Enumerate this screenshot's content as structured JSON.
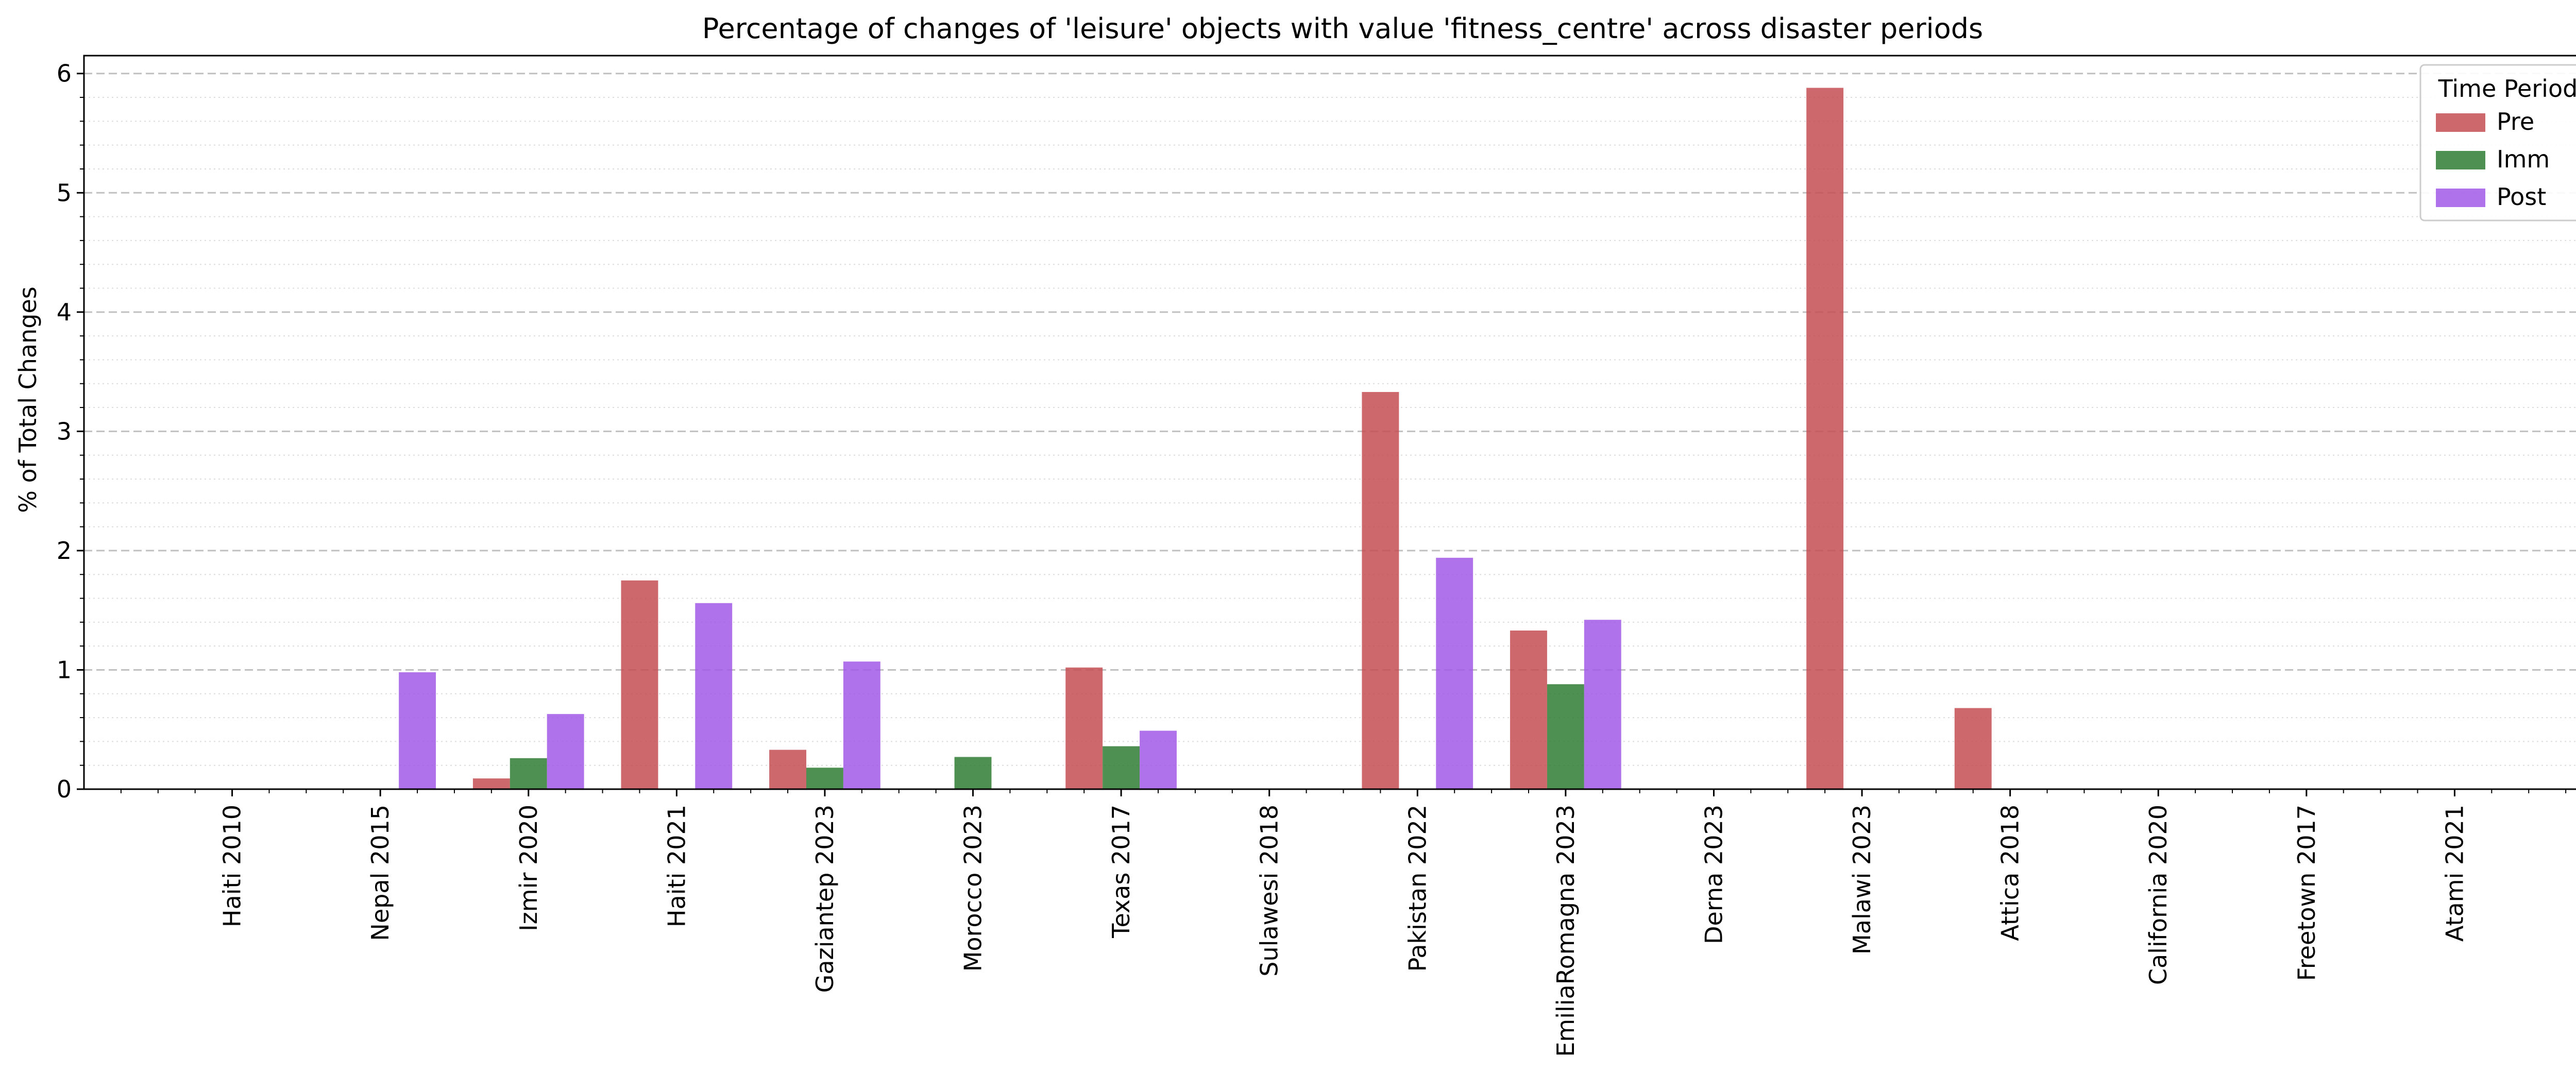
{
  "chart_data": {
    "type": "bar",
    "title": "Percentage of changes of 'leisure' objects with value 'fitness_centre' across disaster periods",
    "xlabel": "",
    "ylabel": "% of Total Changes",
    "ylim": [
      0,
      6.15
    ],
    "yticks": [
      "0",
      "1",
      "2",
      "3",
      "4",
      "5",
      "6"
    ],
    "grid": {
      "major_y": "dashed",
      "minor_y": "dotted"
    },
    "categories": [
      "Haiti 2010",
      "Nepal 2015",
      "Izmir 2020",
      "Haiti 2021",
      "Gaziantep 2023",
      "Morocco 2023",
      "Texas 2017",
      "Sulawesi 2018",
      "Pakistan 2022",
      "EmiliaRomagna 2023",
      "Derna 2023",
      "Malawi 2023",
      "Attica 2018",
      "California 2020",
      "Freetown 2017",
      "Atami 2021"
    ],
    "series": [
      {
        "name": "Pre",
        "color": "#c44e52",
        "values": [
          0,
          0,
          0.09,
          1.75,
          0.33,
          0,
          1.02,
          0,
          3.33,
          1.33,
          0,
          5.88,
          0.68,
          0,
          0,
          0
        ]
      },
      {
        "name": "Imm",
        "color": "#2e7d32",
        "values": [
          0,
          0,
          0.26,
          0,
          0.18,
          0.27,
          0.36,
          0,
          0,
          0.88,
          0,
          0,
          0,
          0,
          0,
          0
        ]
      },
      {
        "name": "Post",
        "color": "#a259e8",
        "values": [
          0,
          0.98,
          0.63,
          1.56,
          1.07,
          0,
          0.49,
          0,
          1.94,
          1.42,
          0,
          0,
          0,
          0,
          0,
          0
        ]
      }
    ],
    "legend": {
      "title": "Time Period",
      "placement": "top-right"
    }
  }
}
